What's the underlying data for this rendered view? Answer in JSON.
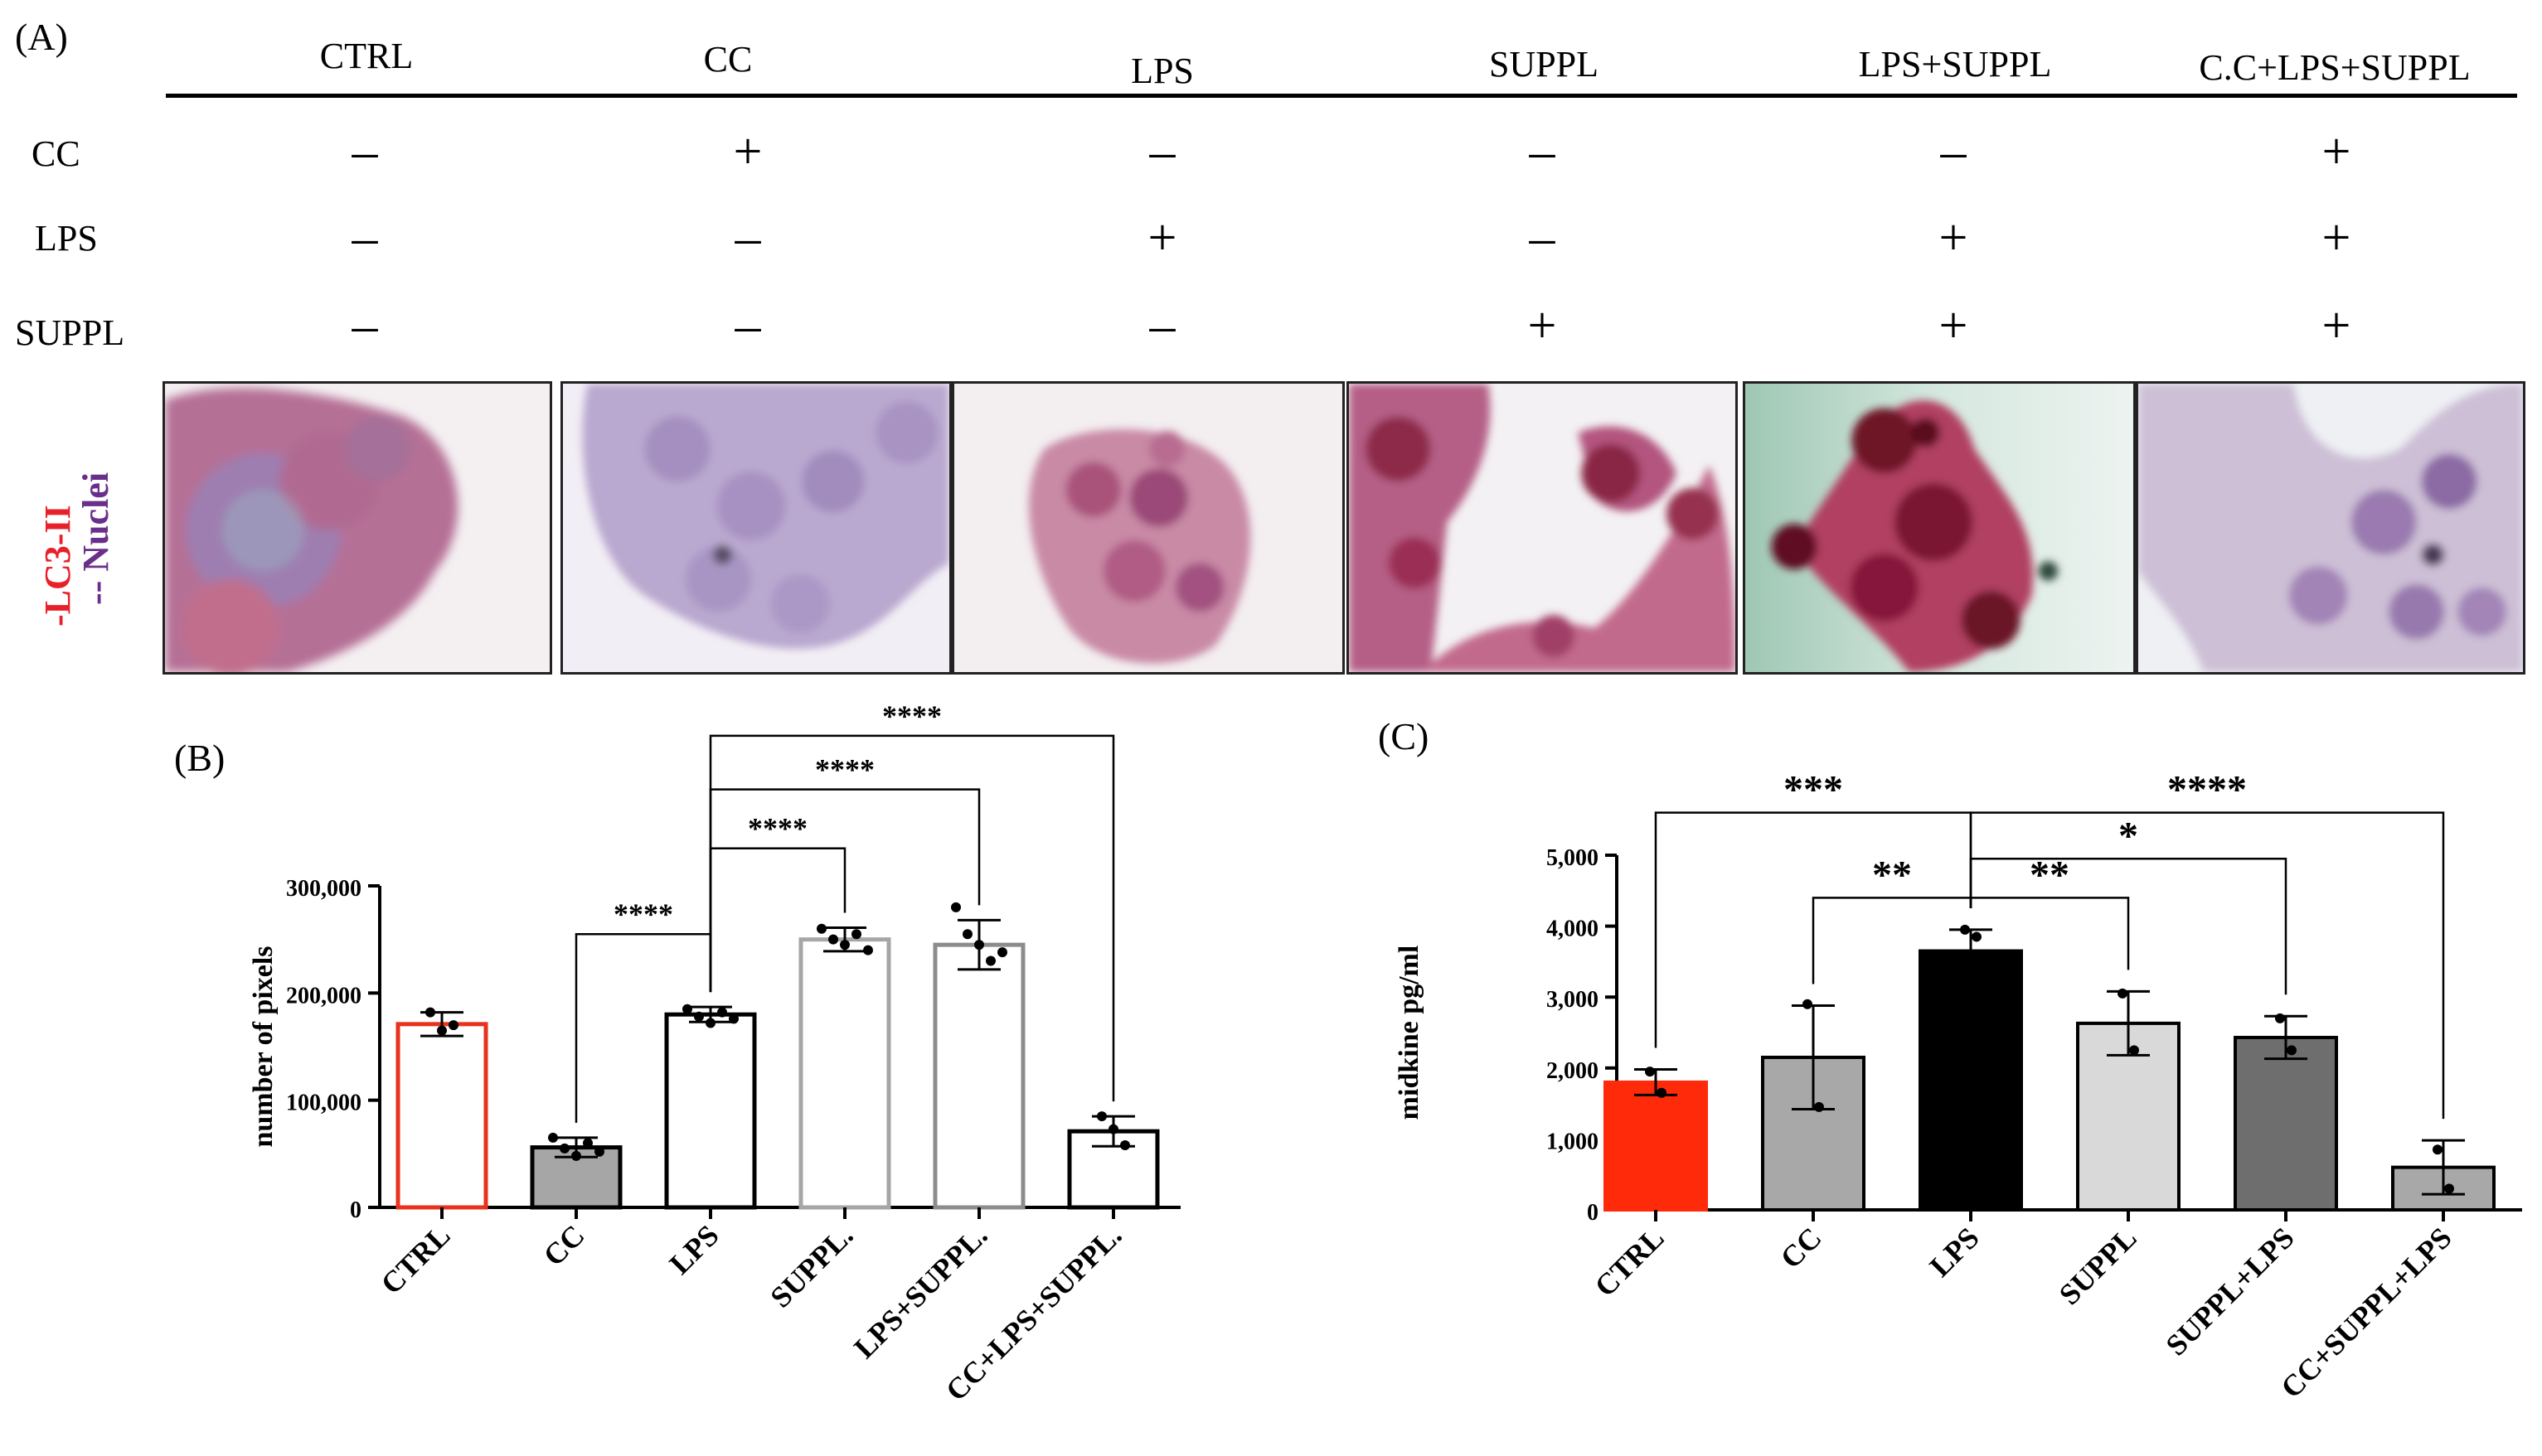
{
  "panel_a": {
    "label": "(A)",
    "column_headers": [
      "CTRL",
      "CC",
      "LPS",
      "SUPPL",
      "LPS+SUPPL",
      "C.C+LPS+SUPPL"
    ],
    "rows": [
      {
        "label": "CC",
        "signs": [
          "-",
          "+",
          "-",
          "-",
          "-",
          "+"
        ]
      },
      {
        "label": "LPS",
        "signs": [
          "-",
          "-",
          "+",
          "-",
          "+",
          "+"
        ]
      },
      {
        "label": "SUPPL",
        "signs": [
          "-",
          "-",
          "-",
          "+",
          "+",
          "+"
        ]
      }
    ],
    "stain_label_1": "-LC3-II",
    "stain_label_2": "-- Nuclei",
    "colors": {
      "lc3": "#e8202a",
      "nuclei": "#6a2f8a"
    }
  },
  "chart_data": [
    {
      "panel": "(B)",
      "type": "bar",
      "ylabel": "number of pixels",
      "ylim": [
        0,
        300000
      ],
      "yticks": [
        0,
        100000,
        200000,
        300000
      ],
      "ytick_labels": [
        "0",
        "100,000",
        "200,000",
        "300,000"
      ],
      "categories": [
        "CTRL",
        "CC",
        "LPS",
        "SUPPL.",
        "LPS+SUPPL.",
        "CC+LPS+SUPPL."
      ],
      "values": [
        171000,
        56000,
        180000,
        250000,
        245000,
        71000
      ],
      "errors": [
        11000,
        9000,
        7000,
        11000,
        23000,
        14000
      ],
      "points": [
        [
          182000,
          165000,
          170000
        ],
        [
          65000,
          55000,
          48000,
          60000,
          52000
        ],
        [
          185000,
          178000,
          172000,
          182000,
          176000
        ],
        [
          260000,
          250000,
          245000,
          255000,
          240000
        ],
        [
          280000,
          255000,
          245000,
          230000,
          238000
        ],
        [
          85000,
          73000,
          58000
        ]
      ],
      "bar_fill": [
        "#ffffff",
        "#a6a6a6",
        "#ffffff",
        "#ffffff",
        "#ffffff",
        "#ffffff"
      ],
      "bar_stroke": [
        "#e8321e",
        "#000000",
        "#000000",
        "#a6a6a6",
        "#8c8c8c",
        "#000000"
      ],
      "comparisons": [
        {
          "from": 1,
          "to": 2,
          "label": "****",
          "y": 255000
        },
        {
          "from": 2,
          "to": 3,
          "label": "****",
          "y": 335000
        },
        {
          "from": 2,
          "to": 4,
          "label": "****",
          "y": 390000
        },
        {
          "from": 2,
          "to": 5,
          "label": "****",
          "y": 440000
        }
      ]
    },
    {
      "panel": "(C)",
      "type": "bar",
      "ylabel": "midkine pg/ml",
      "ylim": [
        0,
        5000
      ],
      "yticks": [
        0,
        1000,
        2000,
        3000,
        4000,
        5000
      ],
      "ytick_labels": [
        "0",
        "1,000",
        "2,000",
        "3,000",
        "4,000",
        "5,000"
      ],
      "categories": [
        "CTRL",
        "CC",
        "LPS",
        "SUPPL",
        "SUPPL+LPS",
        "CC+SUPPL+LPS"
      ],
      "values": [
        1800,
        2150,
        3650,
        2630,
        2430,
        600
      ],
      "errors": [
        180,
        730,
        300,
        450,
        300,
        380
      ],
      "points": [
        [
          1950,
          1650
        ],
        [
          2900,
          1450
        ],
        [
          3950,
          3850
        ],
        [
          3050,
          2250
        ],
        [
          2700,
          2250
        ],
        [
          850,
          300
        ]
      ],
      "bar_fill": [
        "#ff2a0a",
        "#a8a8a8",
        "#000000",
        "#d9d9d9",
        "#6e6e6e",
        "#a8a8a8"
      ],
      "bar_stroke": [
        "#ff2a0a",
        "#000000",
        "#000000",
        "#000000",
        "#000000",
        "#000000"
      ],
      "comparisons": [
        {
          "from": 1,
          "to": 2,
          "label": "**",
          "y": 4400
        },
        {
          "from": 2,
          "to": 3,
          "label": "**",
          "y": 4400
        },
        {
          "from": 2,
          "to": 4,
          "label": "*",
          "y": 4950
        },
        {
          "from": 0,
          "to": 2,
          "label": "***",
          "y": 5600
        },
        {
          "from": 2,
          "to": 5,
          "label": "****",
          "y": 5600
        }
      ]
    }
  ]
}
